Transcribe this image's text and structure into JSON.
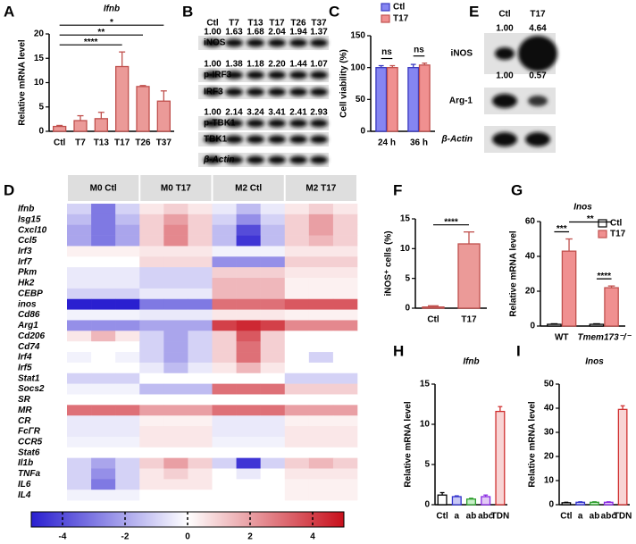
{
  "chart_data": [
    {
      "panel": "A",
      "type": "bar",
      "title": "Ifnb",
      "title_style": "italic",
      "ylabel": "Relative mRNA level",
      "categories": [
        "Ctl",
        "T7",
        "T13",
        "T17",
        "T26",
        "T37"
      ],
      "values": [
        1.0,
        2.2,
        2.6,
        13.3,
        9.2,
        6.2
      ],
      "errors": [
        0.2,
        1.0,
        1.3,
        3.0,
        0.2,
        2.1
      ],
      "color": "#eb9a98",
      "edge": "#c0504d",
      "ylim": [
        0,
        20
      ],
      "yticks": [
        0,
        5,
        10,
        15,
        20
      ],
      "annotations": [
        {
          "label": "****",
          "bars": [
            0,
            3
          ]
        },
        {
          "label": "**",
          "bars": [
            0,
            4
          ]
        },
        {
          "label": "*",
          "bars": [
            0,
            5
          ]
        }
      ]
    },
    {
      "panel": "C",
      "type": "grouped_bar",
      "ylabel": "Cell viability (%)",
      "categories": [
        "24 h",
        "36 h"
      ],
      "series": [
        {
          "name": "Ctl",
          "color": "#8585f2",
          "edge": "#3a3ac0",
          "values": [
            100,
            100
          ],
          "errors": [
            3,
            5
          ]
        },
        {
          "name": "T17",
          "color": "#f09090",
          "edge": "#c0504d",
          "values": [
            100,
            104
          ],
          "errors": [
            3,
            3
          ]
        }
      ],
      "ylim": [
        0,
        150
      ],
      "yticks": [
        0,
        50,
        100,
        150
      ],
      "legend": "top",
      "annotations": [
        {
          "label": "ns",
          "bars": [
            0,
            1
          ]
        },
        {
          "label": "ns",
          "bars": [
            2,
            3
          ]
        }
      ]
    },
    {
      "panel": "D",
      "type": "heatmap",
      "groups": [
        "M0 Ctl",
        "M0 T17",
        "M2 Ctl",
        "M2 T17"
      ],
      "rows": [
        "Ifnb",
        "Isg15",
        "Cxcl10",
        "Ccl5",
        "Irf3",
        "Irf7",
        "Pkm",
        "Hk2",
        "CEBP",
        "inos",
        "Cd86",
        "Arg1",
        "Cd206",
        "Cd74",
        "Irf4",
        "Irf5",
        "Stat1",
        "Socs2",
        "SR",
        "MR",
        "CR",
        "FcΓR",
        "CCR5",
        "Stat6",
        "Il1b",
        "TNFa",
        "IL6",
        "IL4"
      ],
      "values": [
        [
          -1,
          -3,
          -1,
          0.5,
          1,
          0.5,
          -0.5,
          -1.5,
          -0.5,
          0.5,
          1,
          0.5
        ],
        [
          -1.5,
          -3,
          -1.5,
          1,
          2,
          1,
          -1,
          -2.5,
          -1,
          1,
          2,
          1
        ],
        [
          -2,
          -3,
          -2,
          1,
          2.5,
          1,
          -1.5,
          -4,
          -1.5,
          1,
          2,
          1
        ],
        [
          -2,
          -3,
          -2,
          1,
          2.5,
          1,
          -1.5,
          -4.5,
          -1.5,
          1,
          1.5,
          1
        ],
        [
          0.3,
          0.3,
          0.3,
          0.5,
          0.5,
          0.5,
          -0.3,
          -0.3,
          -0.3,
          0.5,
          0.5,
          0.5
        ],
        [
          0,
          0,
          0,
          0.8,
          0.8,
          0.8,
          -2.5,
          -2.5,
          -2.5,
          1,
          1,
          1
        ],
        [
          -0.5,
          -0.5,
          -0.5,
          -1,
          -1,
          -1,
          1,
          1,
          1,
          0.5,
          0.5,
          0.5
        ],
        [
          -0.5,
          -0.5,
          -0.5,
          -1,
          -1,
          -1,
          1.5,
          1.5,
          1.5,
          0.3,
          0.3,
          0.3
        ],
        [
          -1,
          -1,
          -1,
          -0.5,
          -0.5,
          -0.5,
          1.5,
          1.5,
          1.5,
          0.3,
          0.3,
          0.3
        ],
        [
          -5,
          -5,
          -5,
          -3,
          -3,
          -3,
          3,
          3,
          3,
          3.5,
          3.5,
          3.5
        ],
        [
          -0.3,
          -0.3,
          -0.3,
          -0.5,
          -0.5,
          -0.5,
          0.5,
          0.5,
          0.5,
          0.3,
          0.3,
          0.3
        ],
        [
          -2.5,
          -2.5,
          -2.5,
          -2,
          -2,
          -2,
          4,
          4.5,
          4,
          2.5,
          2.5,
          2.5
        ],
        [
          0.5,
          1.5,
          0.5,
          -1,
          -2,
          -1,
          1,
          3.5,
          1,
          0,
          0,
          0
        ],
        [
          0,
          0,
          0,
          -1,
          -2,
          -1,
          1,
          3,
          1,
          0,
          0,
          0
        ],
        [
          -0.3,
          0,
          -0.3,
          -1,
          -2,
          -1,
          1,
          3,
          1,
          0,
          -1,
          0
        ],
        [
          0,
          0,
          0,
          -0.5,
          -1.5,
          -0.5,
          0.5,
          1.5,
          0.5,
          0,
          0,
          0
        ],
        [
          -1,
          -1,
          -1,
          0,
          0,
          0,
          0,
          0,
          0,
          -1,
          -1,
          -1
        ],
        [
          -0.3,
          -0.3,
          -0.3,
          -1.5,
          -1.5,
          -1.5,
          3,
          3,
          3,
          1,
          1,
          1
        ],
        [
          0,
          0,
          0,
          0,
          0,
          0,
          0,
          0,
          0,
          0,
          0,
          0
        ],
        [
          3,
          3,
          3,
          2,
          2,
          2,
          3,
          3,
          3,
          2,
          2,
          2
        ],
        [
          -0.5,
          -0.5,
          -0.5,
          0.3,
          0.3,
          0.3,
          -0.5,
          -0.5,
          -0.5,
          0.3,
          0.3,
          0.3
        ],
        [
          -0.5,
          -0.5,
          -0.5,
          0.5,
          0.5,
          0.5,
          -0.5,
          -0.5,
          -0.5,
          0.5,
          0.5,
          0.5
        ],
        [
          -0.3,
          -0.3,
          -0.3,
          0.5,
          0.5,
          0.5,
          -0.3,
          -0.3,
          -0.3,
          0.5,
          0.5,
          0.5
        ],
        [
          0,
          0,
          0,
          0,
          0,
          0,
          0,
          0,
          0,
          0,
          0,
          0
        ],
        [
          -1,
          -2,
          -1,
          1,
          2,
          1,
          -1,
          -4.5,
          -1,
          1,
          1.5,
          1
        ],
        [
          -1,
          -2.5,
          -1,
          0.5,
          1,
          0.5,
          0,
          -0.5,
          0,
          0.5,
          0.5,
          0.5
        ],
        [
          -1,
          -3,
          -1,
          0.5,
          0.5,
          0.5,
          0,
          0,
          0,
          0.3,
          0.3,
          0.3
        ],
        [
          -0.3,
          -0.3,
          -0.3,
          0,
          0,
          0,
          0,
          0,
          0,
          0.3,
          0.3,
          0.3
        ]
      ],
      "colorbar": {
        "lim": [
          -5,
          5
        ],
        "ticks": [
          -4,
          -2,
          0,
          2,
          4
        ]
      }
    },
    {
      "panel": "F",
      "type": "bar",
      "ylabel": "iNOS⁺ cells (%)",
      "categories": [
        "Ctl",
        "T17"
      ],
      "values": [
        0.2,
        10.8
      ],
      "errors": [
        0.2,
        2.0
      ],
      "color": "#eb9a98",
      "edge": "#c0504d",
      "ylim": [
        0,
        15
      ],
      "yticks": [
        0,
        5,
        10,
        15
      ],
      "annotations": [
        {
          "label": "****",
          "bars": [
            0,
            1
          ]
        }
      ]
    },
    {
      "panel": "G",
      "type": "grouped_bar",
      "title": "Inos",
      "title_style": "italic",
      "ylabel": "Relative mRNA level",
      "categories": [
        "WT",
        "Tmem173⁻/⁻"
      ],
      "series": [
        {
          "name": "Ctl",
          "color": "#ffffff",
          "edge": "#000000",
          "values": [
            1,
            1
          ],
          "errors": [
            0.3,
            0.3
          ]
        },
        {
          "name": "T17",
          "color": "#f09090",
          "edge": "#c0504d",
          "values": [
            43,
            22
          ],
          "errors": [
            7,
            1
          ]
        }
      ],
      "ylim": [
        0,
        60
      ],
      "yticks": [
        0,
        20,
        40,
        60
      ],
      "legend": "right",
      "annotations": [
        {
          "label": "***",
          "bars": [
            0,
            1
          ]
        },
        {
          "label": "****",
          "bars": [
            2,
            3
          ]
        },
        {
          "label": "**",
          "bars": [
            1,
            3
          ]
        }
      ]
    },
    {
      "panel": "H",
      "type": "bar",
      "title": "Ifnb",
      "title_style": "italic",
      "ylabel": "Relative mRNA level",
      "categories": [
        "Ctl",
        "a",
        "ab",
        "abc",
        "TDN"
      ],
      "values": [
        1.2,
        1.0,
        0.7,
        1.0,
        11.6
      ],
      "errors": [
        0.3,
        0.1,
        0.1,
        0.2,
        0.6
      ],
      "fills": [
        "#ffffff",
        "#c8c8f5",
        "#c8f0c8",
        "#e2cbf5",
        "#f8d4d4"
      ],
      "edges": [
        "#000000",
        "#3333cc",
        "#2e9e2e",
        "#8a2be2",
        "#d03030"
      ],
      "ylim": [
        0,
        15
      ],
      "yticks": [
        0,
        5,
        10,
        15
      ]
    },
    {
      "panel": "I",
      "type": "bar",
      "title": "Inos",
      "title_style": "italic",
      "ylabel": "Relative mRNA level",
      "categories": [
        "Ctl",
        "a",
        "ab",
        "abc",
        "TDN"
      ],
      "values": [
        0.8,
        1.0,
        1.0,
        1.0,
        39.5
      ],
      "errors": [
        0.2,
        0.2,
        0.2,
        0.2,
        1.5
      ],
      "fills": [
        "#ffffff",
        "#c8c8f5",
        "#c8f0c8",
        "#e2cbf5",
        "#f8d4d4"
      ],
      "edges": [
        "#000000",
        "#3333cc",
        "#2e9e2e",
        "#8a2be2",
        "#d03030"
      ],
      "ylim": [
        0,
        50
      ],
      "yticks": [
        0,
        10,
        20,
        30,
        40,
        50
      ]
    }
  ],
  "blots": [
    {
      "panel": "B",
      "lanes": [
        "Ctl",
        "T7",
        "T13",
        "T17",
        "T26",
        "T37"
      ],
      "rows": [
        {
          "label": "iNOS",
          "quant": [
            "1.00",
            "1.63",
            "1.68",
            "2.04",
            "1.94",
            "1.37"
          ]
        },
        {
          "label": "p-IRF3",
          "quant": [
            "1.00",
            "1.38",
            "1.18",
            "2.20",
            "1.44",
            "1.07"
          ]
        },
        {
          "label": "IRF3"
        },
        {
          "label": "p-TBK1",
          "quant": [
            "1.00",
            "2.14",
            "3.24",
            "3.41",
            "2.41",
            "2.93"
          ]
        },
        {
          "label": "TBK1"
        },
        {
          "label": "β-Actin"
        }
      ]
    },
    {
      "panel": "E",
      "lanes": [
        "Ctl",
        "T17"
      ],
      "rows": [
        {
          "label": "iNOS",
          "quant": [
            "1.00",
            "4.64"
          ]
        },
        {
          "label": "Arg-1",
          "quant": [
            "1.00",
            "0.57"
          ]
        },
        {
          "label": "β-Actin"
        }
      ]
    }
  ]
}
